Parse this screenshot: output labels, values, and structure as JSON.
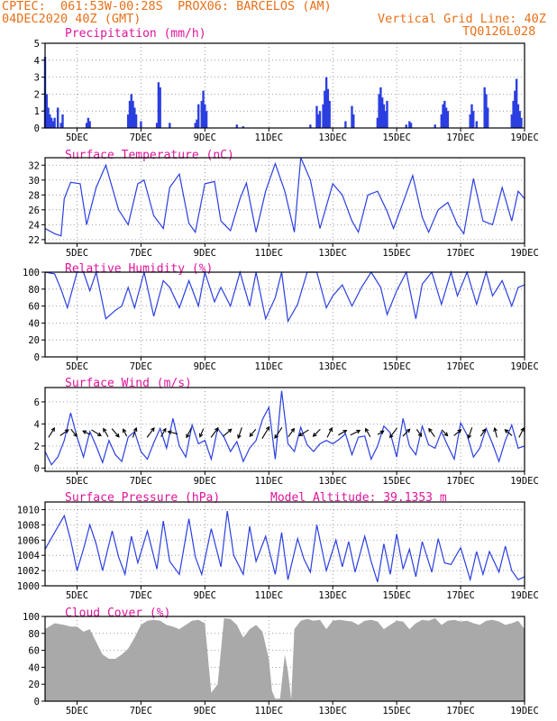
{
  "header": {
    "line1_left": "CPTEC:  061:53W-00:28S  PROX06: BARCELOS (AM)",
    "line2_left": "04DEC2020 40Z (GMT)",
    "line2_right": "Vertical Grid Line: 40Z",
    "line3_right": "TQ0126L028"
  },
  "colors": {
    "header": "#e8701a",
    "title": "#e0149b",
    "line": "#2b3fe0",
    "cloud": "#a9a9a9",
    "axis": "#000000",
    "grid": "#888888"
  },
  "chart_data": [
    {
      "type": "bar",
      "title": "Precipitation (mm/h)",
      "xlabels": [
        "5DEC",
        "7DEC",
        "9DEC",
        "11DEC",
        "13DEC",
        "15DEC",
        "17DEC",
        "19DEC"
      ],
      "xlim": [
        4,
        19
      ],
      "ylim": [
        0,
        5
      ],
      "yticks": [
        0,
        1,
        2,
        3,
        4,
        5
      ],
      "x": [
        4.0,
        4.05,
        4.1,
        4.15,
        4.2,
        4.25,
        4.3,
        4.4,
        4.5,
        4.55,
        5.3,
        5.35,
        5.4,
        6.6,
        6.65,
        6.7,
        6.75,
        6.8,
        6.85,
        7.0,
        7.5,
        7.55,
        7.6,
        7.9,
        8.7,
        8.75,
        8.8,
        8.9,
        8.95,
        9.0,
        9.05,
        10.0,
        10.2,
        12.3,
        12.5,
        12.55,
        12.6,
        12.7,
        12.75,
        12.8,
        12.85,
        12.9,
        13.4,
        13.6,
        13.65,
        14.4,
        14.45,
        14.5,
        14.55,
        14.6,
        14.65,
        14.7,
        15.3,
        15.4,
        15.45,
        16.2,
        16.4,
        16.45,
        16.5,
        16.55,
        16.6,
        17.3,
        17.35,
        17.4,
        17.5,
        17.75,
        17.8,
        17.85,
        18.6,
        18.65,
        18.7,
        18.75,
        18.8,
        18.85,
        18.9
      ],
      "values": [
        4.2,
        2.0,
        1.2,
        0.8,
        0.6,
        0.4,
        0.6,
        1.2,
        0.3,
        0.8,
        0.3,
        0.6,
        0.4,
        0.8,
        1.6,
        2.0,
        1.6,
        1.2,
        0.8,
        0.4,
        0.3,
        2.7,
        2.4,
        0.3,
        0.3,
        0.5,
        1.4,
        1.6,
        2.2,
        1.4,
        1.0,
        0.2,
        0.1,
        0.2,
        1.3,
        0.8,
        1.0,
        1.4,
        2.2,
        3.0,
        2.3,
        1.6,
        0.4,
        1.3,
        0.8,
        0.6,
        2.0,
        2.4,
        1.8,
        1.4,
        1.0,
        1.6,
        0.2,
        0.4,
        0.3,
        0.2,
        0.8,
        1.4,
        1.6,
        1.2,
        1.0,
        0.8,
        1.4,
        1.0,
        0.4,
        2.4,
        2.0,
        1.2,
        0.8,
        1.6,
        2.2,
        2.9,
        1.4,
        1.0,
        0.6
      ]
    },
    {
      "type": "line",
      "title": "Surface Temperature (nC)",
      "xlabels": [
        "5DEC",
        "7DEC",
        "9DEC",
        "11DEC",
        "13DEC",
        "15DEC",
        "17DEC",
        "19DEC"
      ],
      "xlim": [
        4,
        19
      ],
      "ylim": [
        21.5,
        33
      ],
      "yticks": [
        22,
        24,
        26,
        28,
        30,
        32
      ],
      "x": [
        4.0,
        4.3,
        4.5,
        4.6,
        4.8,
        5.1,
        5.3,
        5.6,
        5.9,
        6.3,
        6.6,
        6.9,
        7.1,
        7.4,
        7.7,
        7.9,
        8.2,
        8.5,
        8.7,
        9.0,
        9.3,
        9.5,
        9.8,
        10.1,
        10.3,
        10.6,
        10.9,
        11.2,
        11.5,
        11.8,
        12.0,
        12.3,
        12.6,
        13.0,
        13.3,
        13.6,
        13.8,
        14.1,
        14.4,
        14.7,
        14.9,
        15.2,
        15.5,
        15.8,
        16.0,
        16.3,
        16.6,
        16.9,
        17.1,
        17.4,
        17.7,
        18.0,
        18.3,
        18.6,
        18.8,
        19.0
      ],
      "values": [
        23.5,
        22.8,
        22.5,
        27.5,
        29.7,
        29.5,
        24.0,
        29.0,
        32.0,
        26.0,
        24.0,
        29.5,
        30.0,
        25.2,
        23.5,
        29.0,
        30.8,
        24.2,
        23.0,
        29.5,
        29.8,
        24.5,
        23.2,
        27.5,
        29.6,
        23.0,
        28.5,
        32.2,
        28.5,
        23.0,
        33.0,
        30.0,
        23.5,
        29.5,
        28.0,
        24.5,
        23.0,
        28.0,
        28.5,
        25.8,
        23.5,
        27.0,
        30.6,
        25.0,
        23.0,
        26.0,
        27.0,
        24.0,
        22.8,
        30.2,
        24.5,
        24.0,
        29.0,
        24.5,
        28.5,
        27.5
      ]
    },
    {
      "type": "line",
      "title": "Relative Humidity (%)",
      "xlabels": [
        "5DEC",
        "7DEC",
        "9DEC",
        "11DEC",
        "13DEC",
        "15DEC",
        "17DEC",
        "19DEC"
      ],
      "xlim": [
        4,
        19
      ],
      "ylim": [
        0,
        100
      ],
      "yticks": [
        0,
        20,
        40,
        60,
        80,
        100
      ],
      "x": [
        4.0,
        4.3,
        4.5,
        4.7,
        5.0,
        5.2,
        5.4,
        5.6,
        5.9,
        6.2,
        6.4,
        6.6,
        6.8,
        7.1,
        7.4,
        7.7,
        7.9,
        8.2,
        8.5,
        8.8,
        9.0,
        9.3,
        9.5,
        9.8,
        10.1,
        10.4,
        10.6,
        10.9,
        11.2,
        11.4,
        11.6,
        11.9,
        12.2,
        12.5,
        12.8,
        13.0,
        13.3,
        13.6,
        13.9,
        14.2,
        14.5,
        14.7,
        15.0,
        15.3,
        15.6,
        15.8,
        16.1,
        16.4,
        16.7,
        16.9,
        17.2,
        17.5,
        17.8,
        18.0,
        18.3,
        18.6,
        18.8,
        19.0
      ],
      "values": [
        100,
        98,
        80,
        58,
        100,
        100,
        78,
        100,
        45,
        55,
        60,
        82,
        58,
        100,
        48,
        90,
        82,
        58,
        90,
        60,
        100,
        65,
        82,
        60,
        100,
        60,
        100,
        45,
        70,
        100,
        42,
        62,
        100,
        100,
        58,
        72,
        85,
        60,
        82,
        100,
        82,
        50,
        78,
        100,
        45,
        86,
        100,
        62,
        100,
        72,
        100,
        62,
        100,
        72,
        90,
        60,
        82,
        85
      ]
    },
    {
      "type": "line",
      "title": "Surface Wind (m/s)",
      "xlabels": [
        "5DEC",
        "7DEC",
        "9DEC",
        "11DEC",
        "13DEC",
        "15DEC",
        "17DEC",
        "19DEC"
      ],
      "xlim": [
        4,
        19
      ],
      "ylim": [
        -0.3,
        7.3
      ],
      "yticks": [
        0,
        2,
        4,
        6
      ],
      "x": [
        4.0,
        4.2,
        4.4,
        4.6,
        4.8,
        5.0,
        5.2,
        5.4,
        5.6,
        5.8,
        6.0,
        6.2,
        6.4,
        6.6,
        6.8,
        7.0,
        7.2,
        7.4,
        7.6,
        7.8,
        8.0,
        8.2,
        8.4,
        8.6,
        8.8,
        9.0,
        9.2,
        9.4,
        9.6,
        9.8,
        10.0,
        10.2,
        10.4,
        10.6,
        10.8,
        11.0,
        11.2,
        11.4,
        11.6,
        11.8,
        12.0,
        12.2,
        12.4,
        12.6,
        12.8,
        13.0,
        13.2,
        13.4,
        13.6,
        13.8,
        14.0,
        14.2,
        14.4,
        14.6,
        14.8,
        15.0,
        15.2,
        15.4,
        15.6,
        15.8,
        16.0,
        16.2,
        16.4,
        16.6,
        16.8,
        17.0,
        17.2,
        17.4,
        17.6,
        17.8,
        18.0,
        18.2,
        18.4,
        18.6,
        18.8,
        19.0
      ],
      "values": [
        1.5,
        0.3,
        1.0,
        2.5,
        5.0,
        2.8,
        1.0,
        3.3,
        2.0,
        0.5,
        2.5,
        1.2,
        0.6,
        2.8,
        3.3,
        1.5,
        0.8,
        2.3,
        3.6,
        1.8,
        4.5,
        2.0,
        1.0,
        3.9,
        2.2,
        2.5,
        0.8,
        3.6,
        2.8,
        1.5,
        2.4,
        0.6,
        1.8,
        2.5,
        4.4,
        5.5,
        0.8,
        7.0,
        2.2,
        1.5,
        3.7,
        2.1,
        1.5,
        2.2,
        2.5,
        2.2,
        2.6,
        3.1,
        1.2,
        2.8,
        2.9,
        0.8,
        2.0,
        3.8,
        3.2,
        1.0,
        4.5,
        2.0,
        1.2,
        3.8,
        2.1,
        1.8,
        3.3,
        2.0,
        0.8,
        4.1,
        3.0,
        1.0,
        1.8,
        3.6,
        2.2,
        0.6,
        2.5,
        3.9,
        1.8,
        2.0
      ],
      "vector_x": [
        4.2,
        4.6,
        4.9,
        5.3,
        5.6,
        5.9,
        6.2,
        6.5,
        6.8,
        7.3,
        7.7,
        8.0,
        8.5,
        8.9,
        9.3,
        9.7,
        10.1,
        10.5,
        10.9,
        11.3,
        11.7,
        12.1,
        12.5,
        12.9,
        13.3,
        13.7,
        14.1,
        14.5,
        14.9,
        15.3,
        15.7,
        16.1,
        16.5,
        16.9,
        17.3,
        17.7,
        18.1,
        18.5,
        18.9
      ],
      "vector_u": [
        0.5,
        0.7,
        0.5,
        -0.6,
        0.8,
        -0.4,
        0.6,
        -0.3,
        0.3,
        0.6,
        0.4,
        -0.8,
        -0.4,
        -0.3,
        0.6,
        0.7,
        -0.3,
        -0.5,
        0.6,
        -0.6,
        0.5,
        -0.8,
        -0.6,
        0.4,
        0.7,
        0.8,
        -0.4,
        0.5,
        -0.6,
        0.6,
        0.4,
        -0.5,
        0.5,
        0.6,
        -0.3,
        0.4,
        -0.2,
        -0.6,
        0.4
      ],
      "vector_v": [
        0.8,
        0.5,
        -0.6,
        0.3,
        -0.5,
        0.7,
        -0.7,
        0.6,
        0.8,
        0.8,
        0.7,
        0.2,
        -0.8,
        -0.7,
        0.8,
        0.6,
        -0.9,
        -0.6,
        1.0,
        -0.9,
        0.7,
        -0.5,
        -0.6,
        0.8,
        0.4,
        0.4,
        0.7,
        0.3,
        -0.8,
        0.6,
        -0.6,
        0.7,
        -0.5,
        0.5,
        -0.9,
        0.6,
        0.8,
        0.5,
        0.8
      ]
    },
    {
      "type": "line",
      "title": "Surface Pressure (hPa)",
      "subtitle": "Model Altitude: 39.1353 m",
      "xlabels": [
        "5DEC",
        "7DEC",
        "9DEC",
        "11DEC",
        "13DEC",
        "15DEC",
        "17DEC",
        "19DEC"
      ],
      "xlim": [
        4,
        19
      ],
      "ylim": [
        1000,
        1011
      ],
      "yticks": [
        1000,
        1002,
        1004,
        1006,
        1008,
        1010
      ],
      "x": [
        4.0,
        4.3,
        4.6,
        4.8,
        5.0,
        5.2,
        5.4,
        5.6,
        5.8,
        6.1,
        6.3,
        6.5,
        6.7,
        6.9,
        7.2,
        7.5,
        7.7,
        7.9,
        8.2,
        8.5,
        8.7,
        8.9,
        9.2,
        9.5,
        9.7,
        9.9,
        10.2,
        10.4,
        10.6,
        10.9,
        11.2,
        11.4,
        11.6,
        11.9,
        12.1,
        12.3,
        12.5,
        12.8,
        13.1,
        13.3,
        13.5,
        13.7,
        14.0,
        14.2,
        14.4,
        14.6,
        14.8,
        15.0,
        15.2,
        15.4,
        15.6,
        15.8,
        16.1,
        16.3,
        16.5,
        16.7,
        17.0,
        17.3,
        17.5,
        17.7,
        17.9,
        18.2,
        18.4,
        18.6,
        18.8,
        19.0
      ],
      "values": [
        1004.8,
        1007.0,
        1009.2,
        1006.0,
        1002.0,
        1004.8,
        1008.0,
        1005.5,
        1002.0,
        1007.2,
        1003.8,
        1001.5,
        1006.5,
        1003.0,
        1007.2,
        1002.2,
        1008.5,
        1003.2,
        1001.5,
        1008.8,
        1003.8,
        1001.5,
        1007.5,
        1002.5,
        1009.8,
        1004.0,
        1001.5,
        1007.8,
        1003.2,
        1006.5,
        1001.5,
        1007.0,
        1000.8,
        1006.2,
        1003.5,
        1001.8,
        1008.0,
        1002.0,
        1006.0,
        1002.5,
        1005.8,
        1001.8,
        1006.5,
        1003.2,
        1000.5,
        1005.5,
        1001.5,
        1006.8,
        1002.2,
        1004.8,
        1001.2,
        1005.8,
        1001.8,
        1006.2,
        1003.0,
        1002.8,
        1005.0,
        1000.8,
        1004.5,
        1001.5,
        1004.5,
        1001.8,
        1005.2,
        1002.0,
        1000.8,
        1001.2
      ]
    },
    {
      "type": "area",
      "title": "Cloud Cover (%)",
      "xlabels": [
        "5DEC",
        "7DEC",
        "9DEC",
        "11DEC",
        "13DEC",
        "15DEC",
        "17DEC",
        "19DEC"
      ],
      "xlim": [
        4,
        19
      ],
      "ylim": [
        0,
        100
      ],
      "yticks": [
        0,
        20,
        40,
        60,
        80,
        100
      ],
      "x": [
        4.0,
        4.3,
        4.6,
        4.8,
        5.0,
        5.2,
        5.4,
        5.6,
        5.8,
        6.0,
        6.2,
        6.4,
        6.6,
        6.8,
        7.0,
        7.2,
        7.4,
        7.6,
        7.8,
        8.0,
        8.2,
        8.4,
        8.6,
        8.8,
        9.0,
        9.2,
        9.4,
        9.6,
        9.8,
        10.0,
        10.2,
        10.4,
        10.6,
        10.8,
        11.0,
        11.1,
        11.2,
        11.35,
        11.5,
        11.6,
        11.7,
        11.8,
        12.0,
        12.2,
        12.4,
        12.6,
        12.8,
        13.0,
        13.2,
        13.4,
        13.6,
        13.8,
        14.0,
        14.2,
        14.4,
        14.6,
        14.8,
        15.0,
        15.2,
        15.4,
        15.6,
        15.8,
        16.0,
        16.2,
        16.4,
        16.6,
        16.8,
        17.0,
        17.2,
        17.4,
        17.6,
        17.8,
        18.0,
        18.2,
        18.4,
        18.6,
        18.8,
        19.0
      ],
      "values": [
        85,
        92,
        90,
        88,
        88,
        82,
        85,
        70,
        55,
        50,
        50,
        55,
        62,
        75,
        90,
        95,
        96,
        95,
        90,
        88,
        85,
        90,
        95,
        96,
        92,
        10,
        20,
        98,
        97,
        90,
        75,
        85,
        90,
        82,
        50,
        12,
        3,
        3,
        55,
        35,
        2,
        85,
        95,
        97,
        95,
        96,
        85,
        95,
        96,
        95,
        94,
        90,
        95,
        96,
        94,
        85,
        90,
        95,
        94,
        85,
        92,
        96,
        95,
        98,
        90,
        95,
        96,
        94,
        95,
        92,
        90,
        95,
        96,
        94,
        90,
        92,
        95,
        85
      ]
    }
  ]
}
